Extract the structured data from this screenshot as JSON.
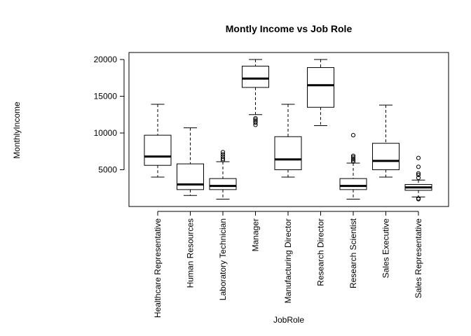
{
  "chart_data": {
    "type": "boxplot",
    "title": "Montly Income vs Job Role",
    "xlabel": "JobRole",
    "ylabel": "MonthlyIncome",
    "ylim": [
      0,
      21000
    ],
    "yticks": [
      5000,
      10000,
      15000,
      20000
    ],
    "categories": [
      "Healthcare Representative",
      "Human Resources",
      "Laboratory Technician",
      "Manager",
      "Manufacturing Director",
      "Research Director",
      "Research Scientist",
      "Sales Executive",
      "Sales Representative"
    ],
    "boxes": [
      {
        "whisker_low": 4000,
        "q1": 5600,
        "median": 6800,
        "q3": 9700,
        "whisker_high": 13900,
        "outliers": []
      },
      {
        "whisker_low": 1500,
        "q1": 2300,
        "median": 3000,
        "q3": 5800,
        "whisker_high": 10700,
        "outliers": []
      },
      {
        "whisker_low": 1000,
        "q1": 2300,
        "median": 2800,
        "q3": 3800,
        "whisker_high": 6100,
        "outliers": [
          6300,
          6500,
          6800,
          7100,
          7400
        ]
      },
      {
        "whisker_low": 12500,
        "q1": 16200,
        "median": 17400,
        "q3": 19100,
        "whisker_high": 20000,
        "outliers": [
          11100,
          11400,
          11600,
          11800,
          12000
        ]
      },
      {
        "whisker_low": 4000,
        "q1": 5000,
        "median": 6400,
        "q3": 9500,
        "whisker_high": 13900,
        "outliers": []
      },
      {
        "whisker_low": 11000,
        "q1": 13500,
        "median": 16500,
        "q3": 18900,
        "whisker_high": 20000,
        "outliers": []
      },
      {
        "whisker_low": 1000,
        "q1": 2300,
        "median": 2800,
        "q3": 3800,
        "whisker_high": 5900,
        "outliers": [
          6100,
          6300,
          6500,
          6700,
          6900,
          9700
        ]
      },
      {
        "whisker_low": 4000,
        "q1": 5000,
        "median": 6200,
        "q3": 8600,
        "whisker_high": 13800,
        "outliers": []
      },
      {
        "whisker_low": 1300,
        "q1": 2200,
        "median": 2600,
        "q3": 3000,
        "whisker_high": 3600,
        "outliers": [
          1000,
          1100,
          3900,
          4300,
          4500,
          5400,
          6600
        ]
      }
    ],
    "grid": false,
    "legend": "none"
  }
}
